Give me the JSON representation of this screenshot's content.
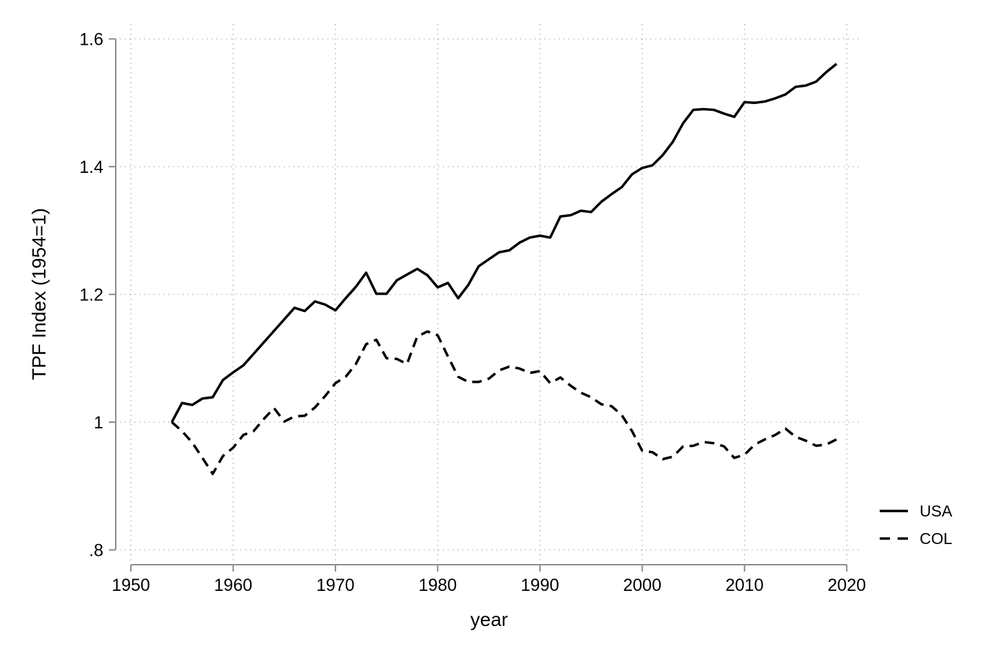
{
  "chart_data": {
    "type": "line",
    "xlabel": "year",
    "ylabel": "TPF Index (1954=1)",
    "xlim": [
      1950,
      2020
    ],
    "ylim": [
      0.8,
      1.6
    ],
    "x_ticks": [
      1950,
      1960,
      1970,
      1980,
      1990,
      2000,
      2010,
      2020
    ],
    "x_tick_labels": [
      "1950",
      "1960",
      "1970",
      "1980",
      "1990",
      "2000",
      "2010",
      "2020"
    ],
    "y_ticks": [
      0.8,
      1.0,
      1.2,
      1.4,
      1.6
    ],
    "y_tick_labels": [
      ".8",
      "1",
      "1.2",
      "1.4",
      "1.6"
    ],
    "grid": "dotted, horizontal and vertical",
    "legend_position": "outside right, lower area",
    "x": [
      1954,
      1955,
      1956,
      1957,
      1958,
      1959,
      1960,
      1961,
      1962,
      1963,
      1964,
      1965,
      1966,
      1967,
      1968,
      1969,
      1970,
      1971,
      1972,
      1973,
      1974,
      1975,
      1976,
      1977,
      1978,
      1979,
      1980,
      1981,
      1982,
      1983,
      1984,
      1985,
      1986,
      1987,
      1988,
      1989,
      1990,
      1991,
      1992,
      1993,
      1994,
      1995,
      1996,
      1997,
      1998,
      1999,
      2000,
      2001,
      2002,
      2003,
      2004,
      2005,
      2006,
      2007,
      2008,
      2009,
      2010,
      2011,
      2012,
      2013,
      2014,
      2015,
      2016,
      2017,
      2018,
      2019
    ],
    "series": [
      {
        "name": "USA",
        "line_style": "solid",
        "color": "#000000",
        "values": [
          1.0,
          1.03,
          1.027,
          1.037,
          1.039,
          1.066,
          1.078,
          1.089,
          1.107,
          1.125,
          1.143,
          1.161,
          1.179,
          1.174,
          1.189,
          1.184,
          1.175,
          1.194,
          1.212,
          1.234,
          1.201,
          1.201,
          1.222,
          1.231,
          1.24,
          1.23,
          1.211,
          1.218,
          1.194,
          1.215,
          1.244,
          1.255,
          1.266,
          1.269,
          1.281,
          1.289,
          1.292,
          1.289,
          1.322,
          1.324,
          1.331,
          1.329,
          1.345,
          1.357,
          1.368,
          1.388,
          1.398,
          1.402,
          1.418,
          1.439,
          1.468,
          1.489,
          1.49,
          1.489,
          1.483,
          1.478,
          1.501,
          1.5,
          1.502,
          1.507,
          1.513,
          1.525,
          1.527,
          1.533,
          1.548,
          1.561
        ]
      },
      {
        "name": "COL",
        "line_style": "dashed",
        "color": "#000000",
        "values": [
          1.0,
          0.986,
          0.968,
          0.944,
          0.919,
          0.947,
          0.96,
          0.98,
          0.986,
          1.005,
          1.022,
          1.001,
          1.009,
          1.01,
          1.023,
          1.041,
          1.061,
          1.071,
          1.091,
          1.122,
          1.129,
          1.1,
          1.099,
          1.091,
          1.134,
          1.142,
          1.136,
          1.103,
          1.071,
          1.063,
          1.063,
          1.068,
          1.081,
          1.087,
          1.084,
          1.077,
          1.08,
          1.061,
          1.07,
          1.057,
          1.046,
          1.039,
          1.028,
          1.025,
          1.011,
          0.986,
          0.955,
          0.953,
          0.942,
          0.946,
          0.962,
          0.963,
          0.969,
          0.967,
          0.962,
          0.944,
          0.949,
          0.965,
          0.973,
          0.98,
          0.99,
          0.977,
          0.971,
          0.963,
          0.965,
          0.973
        ]
      }
    ]
  },
  "legend": {
    "items": [
      {
        "label": "USA",
        "line_style": "solid"
      },
      {
        "label": "COL",
        "line_style": "dashed"
      }
    ]
  },
  "colors": {
    "background": "#ffffff",
    "line": "#000000",
    "axis": "#8a8a8a",
    "grid": "#bdbdbd",
    "text": "#000000"
  }
}
